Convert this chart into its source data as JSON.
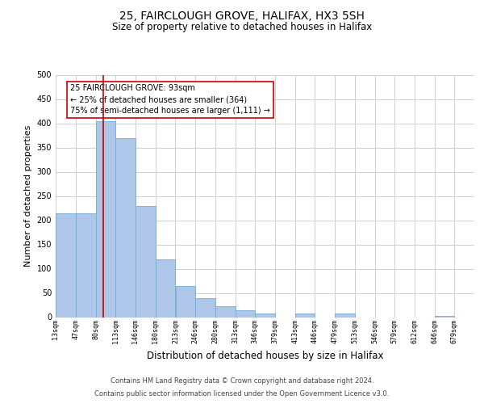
{
  "title": "25, FAIRCLOUGH GROVE, HALIFAX, HX3 5SH",
  "subtitle": "Size of property relative to detached houses in Halifax",
  "xlabel": "Distribution of detached houses by size in Halifax",
  "ylabel": "Number of detached properties",
  "bar_left_edges": [
    13,
    47,
    80,
    113,
    146,
    180,
    213,
    246,
    280,
    313,
    346,
    379,
    413,
    446,
    479,
    513,
    546,
    579,
    612,
    646
  ],
  "bar_widths": [
    34,
    33,
    33,
    33,
    34,
    33,
    33,
    34,
    34,
    33,
    33,
    34,
    33,
    33,
    34,
    33,
    33,
    33,
    34,
    33
  ],
  "bar_heights": [
    215,
    215,
    405,
    370,
    230,
    120,
    65,
    40,
    22,
    15,
    8,
    0,
    8,
    0,
    8,
    0,
    0,
    0,
    0,
    3
  ],
  "bar_color": "#aec6e8",
  "bar_edge_color": "#6baed6",
  "grid_color": "#d0d0d0",
  "vline_x": 93,
  "vline_color": "#cc0000",
  "annotation_text_line1": "25 FAIRCLOUGH GROVE: 93sqm",
  "annotation_text_line2": "← 25% of detached houses are smaller (364)",
  "annotation_text_line3": "75% of semi-detached houses are larger (1,111) →",
  "tick_labels": [
    "13sqm",
    "47sqm",
    "80sqm",
    "113sqm",
    "146sqm",
    "180sqm",
    "213sqm",
    "246sqm",
    "280sqm",
    "313sqm",
    "346sqm",
    "379sqm",
    "413sqm",
    "446sqm",
    "479sqm",
    "513sqm",
    "546sqm",
    "579sqm",
    "612sqm",
    "646sqm",
    "679sqm"
  ],
  "tick_positions": [
    13,
    47,
    80,
    113,
    146,
    180,
    213,
    246,
    280,
    313,
    346,
    379,
    413,
    446,
    479,
    513,
    546,
    579,
    612,
    646,
    679
  ],
  "ylim": [
    0,
    500
  ],
  "xlim": [
    13,
    712
  ],
  "yticks": [
    0,
    50,
    100,
    150,
    200,
    250,
    300,
    350,
    400,
    450,
    500
  ],
  "footer_line1": "Contains HM Land Registry data © Crown copyright and database right 2024.",
  "footer_line2": "Contains public sector information licensed under the Open Government Licence v3.0.",
  "bg_color": "#ffffff",
  "title_fontsize": 10,
  "subtitle_fontsize": 8.5,
  "ylabel_fontsize": 8,
  "xlabel_fontsize": 8.5,
  "tick_fontsize": 6,
  "ann_fontsize": 7,
  "footer_fontsize": 6
}
